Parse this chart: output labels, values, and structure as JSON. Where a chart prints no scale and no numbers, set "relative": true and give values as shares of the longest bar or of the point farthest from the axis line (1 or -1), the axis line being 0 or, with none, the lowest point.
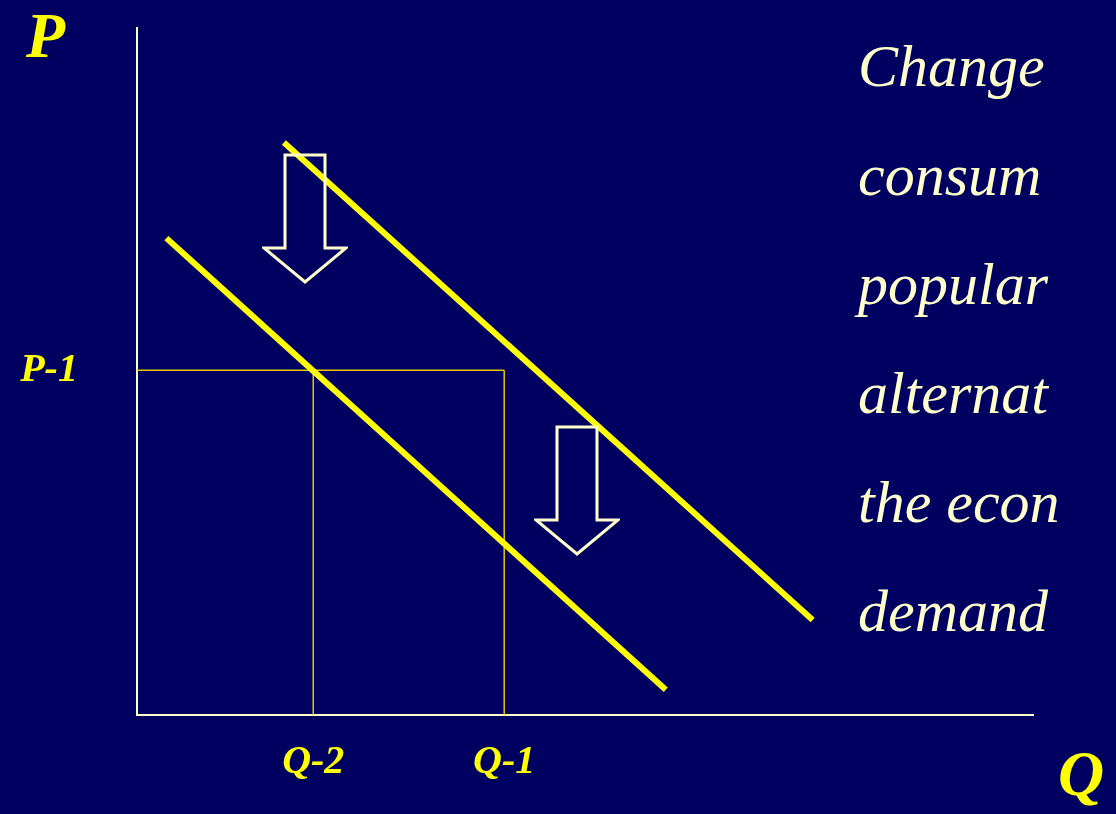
{
  "chart_data": {
    "type": "line",
    "relative": true,
    "xlabel": "Q",
    "ylabel": "P",
    "categories": [
      null,
      null,
      null,
      null,
      null,
      null,
      null,
      null,
      null,
      null,
      null,
      null,
      "Q-2",
      null,
      null,
      null,
      null,
      null,
      null,
      null,
      null,
      null,
      null,
      null,
      null,
      "Q-1",
      null,
      null,
      null,
      null,
      null,
      null,
      null,
      null,
      null,
      null,
      null,
      null,
      null,
      null,
      null,
      null,
      null,
      null,
      null,
      null,
      null,
      null,
      null,
      null,
      null,
      null,
      null,
      null,
      null,
      null,
      null,
      null,
      null,
      null,
      null,
      null
    ],
    "grid": false,
    "legend": false,
    "marker": "none",
    "line_style": "solid",
    "series": [
      {
        "color": "#ffff00",
        "values": [
          null,
          null,
          null,
          null,
          null,
          null,
          null,
          null,
          null,
          null,
          1,
          null,
          null,
          null,
          null,
          null,
          null,
          null,
          null,
          null,
          null,
          null,
          null,
          null,
          null,
          null,
          null,
          null,
          null,
          null,
          null,
          null,
          null,
          null,
          null,
          null,
          null,
          null,
          null,
          null,
          null,
          null,
          null,
          null,
          null,
          null,
          0.166,
          null,
          null,
          null,
          null,
          null,
          null,
          null,
          null,
          null,
          null,
          null,
          null,
          null,
          null,
          null
        ]
      },
      {
        "color": "#ffff00",
        "values": [
          null,
          null,
          0.833,
          null,
          null,
          null,
          null,
          null,
          null,
          null,
          null,
          null,
          null,
          null,
          null,
          null,
          null,
          null,
          null,
          null,
          null,
          null,
          null,
          null,
          null,
          null,
          null,
          null,
          null,
          null,
          null,
          null,
          null,
          null,
          null,
          null,
          0.044,
          null,
          null,
          null,
          null,
          null,
          null,
          null,
          null,
          null,
          null,
          null,
          null,
          null,
          null,
          null,
          null,
          null,
          null,
          null,
          null,
          null,
          null,
          null,
          null,
          null
        ]
      }
    ],
    "ref_lines": [
      {
        "axis": "y",
        "value": 0.602,
        "label": "P-1",
        "color": "#e6c800"
      },
      {
        "axis": "x",
        "value": "Q-2",
        "color": "#e6c800"
      },
      {
        "axis": "x",
        "value": "Q-1",
        "color": "#e6c800"
      }
    ],
    "annotations": [
      "Change",
      "consum",
      "popular",
      "alternat",
      "the econ",
      "demand"
    ]
  }
}
